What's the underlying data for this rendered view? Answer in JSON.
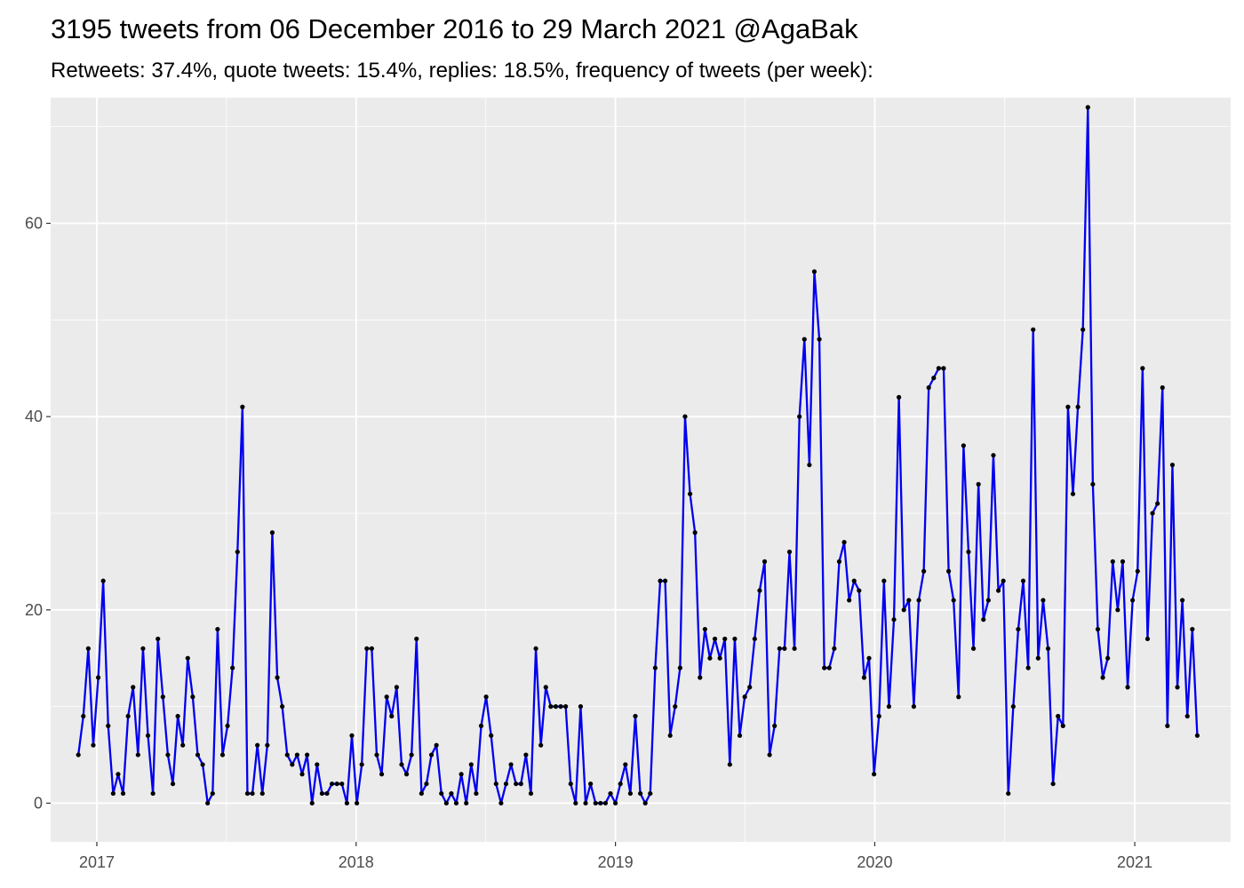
{
  "colors": {
    "panel_background": "#ebebeb",
    "grid_major": "#ffffff",
    "line": "#0000ee",
    "point": "#000000",
    "tick_text": "#4d4d4d"
  },
  "chart_data": {
    "type": "line",
    "title": "3195 tweets from 06 December 2016 to 29 March 2021 @AgaBak",
    "subtitle": "Retweets: 37.4%, quote tweets: 15.4%, replies: 18.5%, frequency of tweets (per week):",
    "xlabel": "",
    "ylabel": "",
    "x_axis": {
      "type": "date",
      "range": [
        "2016-10-28",
        "2021-05-16"
      ],
      "ticks": [
        "2017-01-01",
        "2018-01-01",
        "2019-01-01",
        "2020-01-01",
        "2021-01-01"
      ],
      "tick_labels": [
        "2017",
        "2018",
        "2019",
        "2020",
        "2021"
      ]
    },
    "y_axis": {
      "range": [
        -4,
        73
      ],
      "ticks": [
        0,
        20,
        40,
        60
      ],
      "tick_labels": [
        "0",
        "20",
        "40",
        "60"
      ]
    },
    "grid": true,
    "legend": "none",
    "series": [
      {
        "x_start": "2016-12-06",
        "x_step_days": 7,
        "values": [
          5,
          9,
          16,
          6,
          13,
          23,
          8,
          1,
          3,
          1,
          9,
          12,
          5,
          16,
          7,
          1,
          17,
          11,
          5,
          2,
          9,
          6,
          15,
          11,
          5,
          4,
          0,
          1,
          18,
          5,
          8,
          14,
          26,
          41,
          1,
          1,
          6,
          1,
          6,
          28,
          13,
          10,
          5,
          4,
          5,
          3,
          5,
          0,
          4,
          1,
          1,
          2,
          2,
          2,
          0,
          7,
          0,
          4,
          16,
          16,
          5,
          3,
          11,
          9,
          12,
          4,
          3,
          5,
          17,
          1,
          2,
          5,
          6,
          1,
          0,
          1,
          0,
          3,
          0,
          4,
          1,
          8,
          11,
          7,
          2,
          0,
          2,
          4,
          2,
          2,
          5,
          1,
          16,
          6,
          12,
          10,
          10,
          10,
          10,
          2,
          0,
          10,
          0,
          2,
          0,
          0,
          0,
          1,
          0,
          2,
          4,
          1,
          9,
          1,
          0,
          1,
          14,
          23,
          23,
          7,
          10,
          14,
          40,
          32,
          28,
          13,
          18,
          15,
          17,
          15,
          17,
          4,
          17,
          7,
          11,
          12,
          17,
          22,
          25,
          5,
          8,
          16,
          16,
          26,
          16,
          40,
          48,
          35,
          55,
          48,
          14,
          14,
          16,
          25,
          27,
          21,
          23,
          22,
          13,
          15,
          3,
          9,
          23,
          10,
          19,
          42,
          20,
          21,
          10,
          21,
          24,
          43,
          44,
          45,
          45,
          24,
          21,
          11,
          37,
          26,
          16,
          33,
          19,
          21,
          36,
          22,
          23,
          1,
          10,
          18,
          23,
          14,
          49,
          15,
          21,
          16,
          2,
          9,
          8,
          41,
          32,
          41,
          49,
          72,
          33,
          18,
          13,
          15,
          25,
          20,
          25,
          12,
          21,
          24,
          45,
          17,
          30,
          31,
          43,
          8,
          35,
          12,
          21,
          9,
          18,
          7
        ]
      }
    ]
  }
}
